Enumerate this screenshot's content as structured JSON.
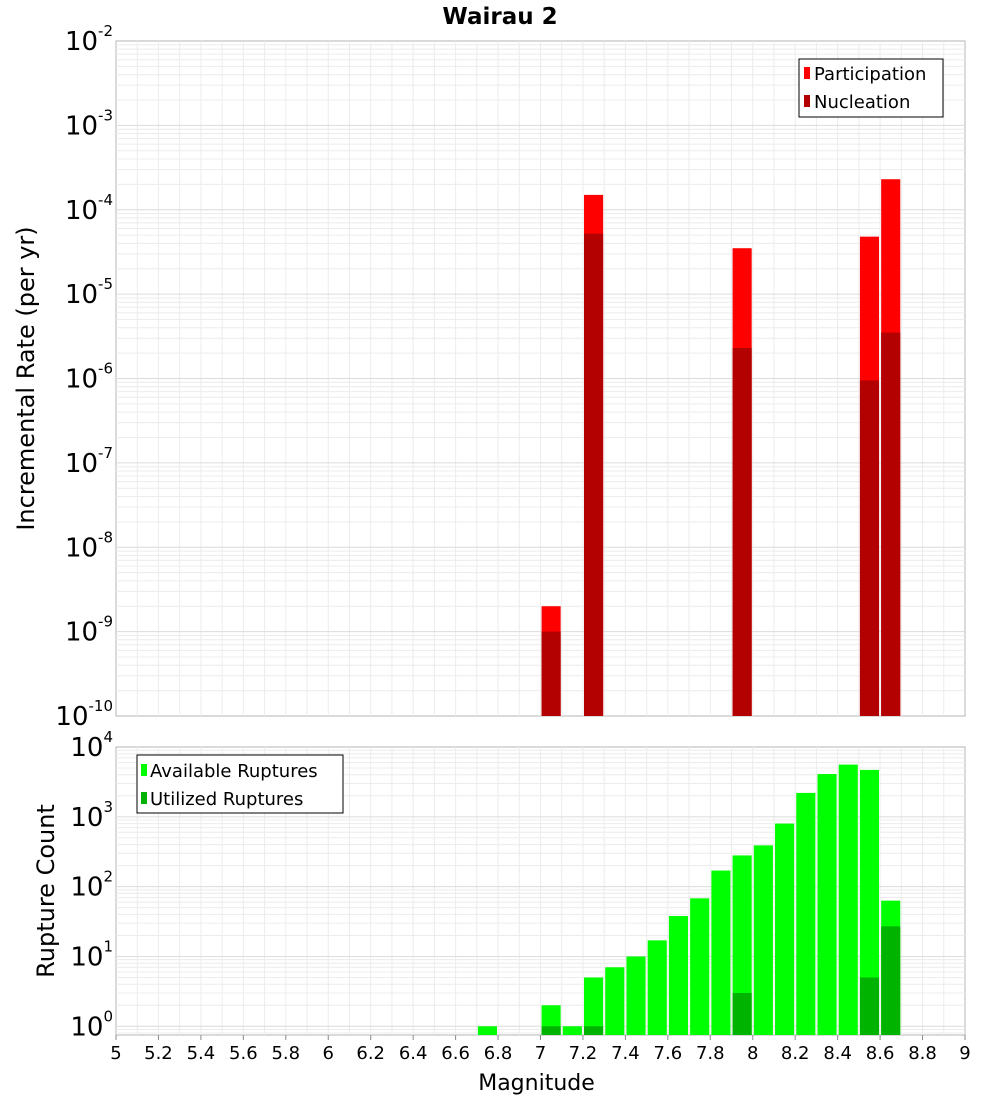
{
  "colors": {
    "participation": "#ff0000",
    "nucleation": "#b30000",
    "available": "#00ff00",
    "utilized": "#00b300",
    "grid": "#ececec",
    "frame": "#b4b4b4"
  },
  "chart_data": [
    {
      "type": "bar",
      "title": "Wairau 2",
      "xlabel": "",
      "ylabel": "Incremental Rate (per yr)",
      "yscale": "log",
      "ylim": [
        1e-10,
        0.01
      ],
      "xlim": [
        5,
        9
      ],
      "x_ticks": [
        "5",
        "5.2",
        "5.4",
        "5.6",
        "5.8",
        "6",
        "6.2",
        "6.4",
        "6.6",
        "6.8",
        "7",
        "7.2",
        "7.4",
        "7.6",
        "7.8",
        "8",
        "8.2",
        "8.4",
        "8.6",
        "8.8",
        "9"
      ],
      "y_ticks": [
        {
          "base": "10",
          "exp": "-10"
        },
        {
          "base": "10",
          "exp": "-9"
        },
        {
          "base": "10",
          "exp": "-8"
        },
        {
          "base": "10",
          "exp": "-7"
        },
        {
          "base": "10",
          "exp": "-6"
        },
        {
          "base": "10",
          "exp": "-5"
        },
        {
          "base": "10",
          "exp": "-4"
        },
        {
          "base": "10",
          "exp": "-3"
        },
        {
          "base": "10",
          "exp": "-2"
        }
      ],
      "grid": true,
      "legend_position": "top-right",
      "series": [
        {
          "name": "Participation",
          "color": "#ff0000",
          "x": [
            7.05,
            7.25,
            7.95,
            8.55,
            8.65
          ],
          "values": [
            2e-09,
            0.00015,
            3.5e-05,
            4.8e-05,
            0.00023
          ]
        },
        {
          "name": "Nucleation",
          "color": "#b30000",
          "x": [
            7.05,
            7.25,
            7.95,
            8.55,
            8.65
          ],
          "values": [
            1e-09,
            5.2e-05,
            2.3e-06,
            9.5e-07,
            3.5e-06
          ]
        }
      ]
    },
    {
      "type": "bar",
      "title": "",
      "xlabel": "Magnitude",
      "ylabel": "Rupture Count",
      "yscale": "log",
      "ylim": [
        0.75,
        10000
      ],
      "xlim": [
        5,
        9
      ],
      "x_ticks": [
        "5",
        "5.2",
        "5.4",
        "5.6",
        "5.8",
        "6",
        "6.2",
        "6.4",
        "6.6",
        "6.8",
        "7",
        "7.2",
        "7.4",
        "7.6",
        "7.8",
        "8",
        "8.2",
        "8.4",
        "8.6",
        "8.8",
        "9"
      ],
      "y_ticks": [
        {
          "base": "10",
          "exp": "0"
        },
        {
          "base": "10",
          "exp": "1"
        },
        {
          "base": "10",
          "exp": "2"
        },
        {
          "base": "10",
          "exp": "3"
        },
        {
          "base": "10",
          "exp": "4"
        }
      ],
      "grid": true,
      "legend_position": "top-left",
      "series": [
        {
          "name": "Available Ruptures",
          "color": "#00ff00",
          "x": [
            6.75,
            7.05,
            7.15,
            7.25,
            7.35,
            7.45,
            7.55,
            7.65,
            7.75,
            7.85,
            7.95,
            8.05,
            8.15,
            8.25,
            8.35,
            8.45,
            8.55,
            8.65
          ],
          "values": [
            1,
            2,
            1,
            5,
            7,
            10,
            17,
            38,
            68,
            170,
            280,
            390,
            800,
            2200,
            4100,
            5600,
            4700,
            63
          ]
        },
        {
          "name": "Utilized Ruptures",
          "color": "#00b300",
          "x": [
            7.05,
            7.25,
            7.95,
            8.55,
            8.65
          ],
          "values": [
            1,
            1,
            3,
            5,
            27
          ]
        }
      ]
    }
  ]
}
